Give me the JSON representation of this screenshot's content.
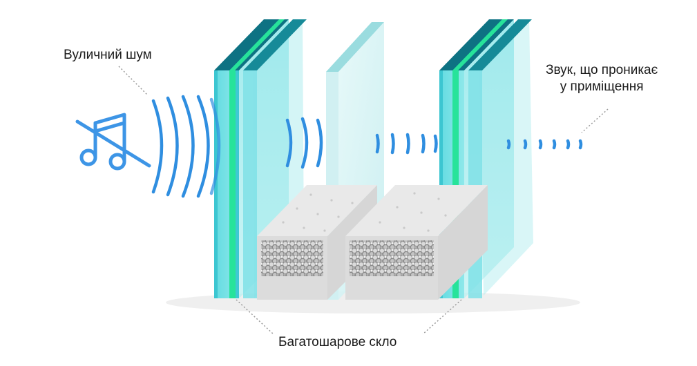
{
  "labels": {
    "street_noise": "Вуличний шум",
    "sound_inside_line1": "Звук, що проникає",
    "sound_inside_line2": "у приміщення",
    "laminated_glass": "Багатошарове скло"
  },
  "icons": {
    "noise_source": "muted-music-note-icon"
  },
  "colors": {
    "glass_face": "#4fd4dc",
    "glass_edge": "#0e6f7f",
    "laminate_layer": "#27e39a",
    "sound_wave": "#2f8ee0",
    "spacer": "#e6e6e6"
  }
}
